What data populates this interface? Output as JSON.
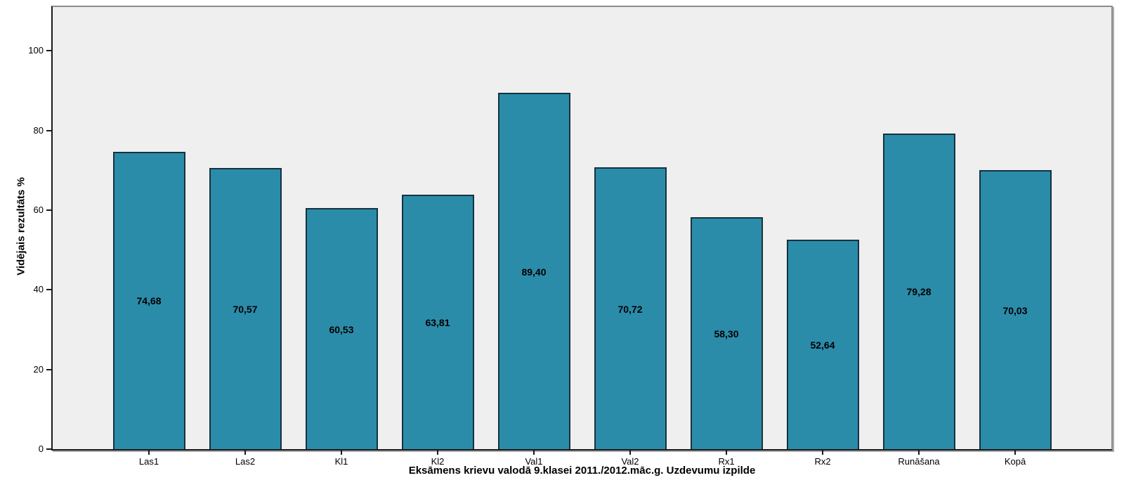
{
  "chart_data": {
    "type": "bar",
    "title": "",
    "xlabel": "Eksāmens krievu valodā 9.klasei 2011./2012.māc.g. Uzdevumu izpilde",
    "ylabel": "Vidējais rezultāts %",
    "categories": [
      "Las1",
      "Las2",
      "Kl1",
      "Kl2",
      "Val1",
      "Val2",
      "Rx1",
      "Rx2",
      "Runāšana",
      "Kopā"
    ],
    "values": [
      74.68,
      70.57,
      60.53,
      63.81,
      89.4,
      70.72,
      58.3,
      52.64,
      79.28,
      70.03
    ],
    "value_labels": [
      "74,68",
      "70,57",
      "60,53",
      "63,81",
      "89,40",
      "70,72",
      "58,30",
      "52,64",
      "79,28",
      "70,03"
    ],
    "yticks": [
      0,
      20,
      40,
      60,
      80,
      100
    ],
    "ylim": [
      0,
      111
    ],
    "grid": false,
    "legend_position": "none",
    "bar_color": "#2B8CAA",
    "bar_border_color": "#16323F",
    "plot_background_color": "#EFEFEF",
    "frame_color": "#8C8C8C",
    "axis_color": "#1A1A1A",
    "value_label_position": "center-of-bar"
  }
}
